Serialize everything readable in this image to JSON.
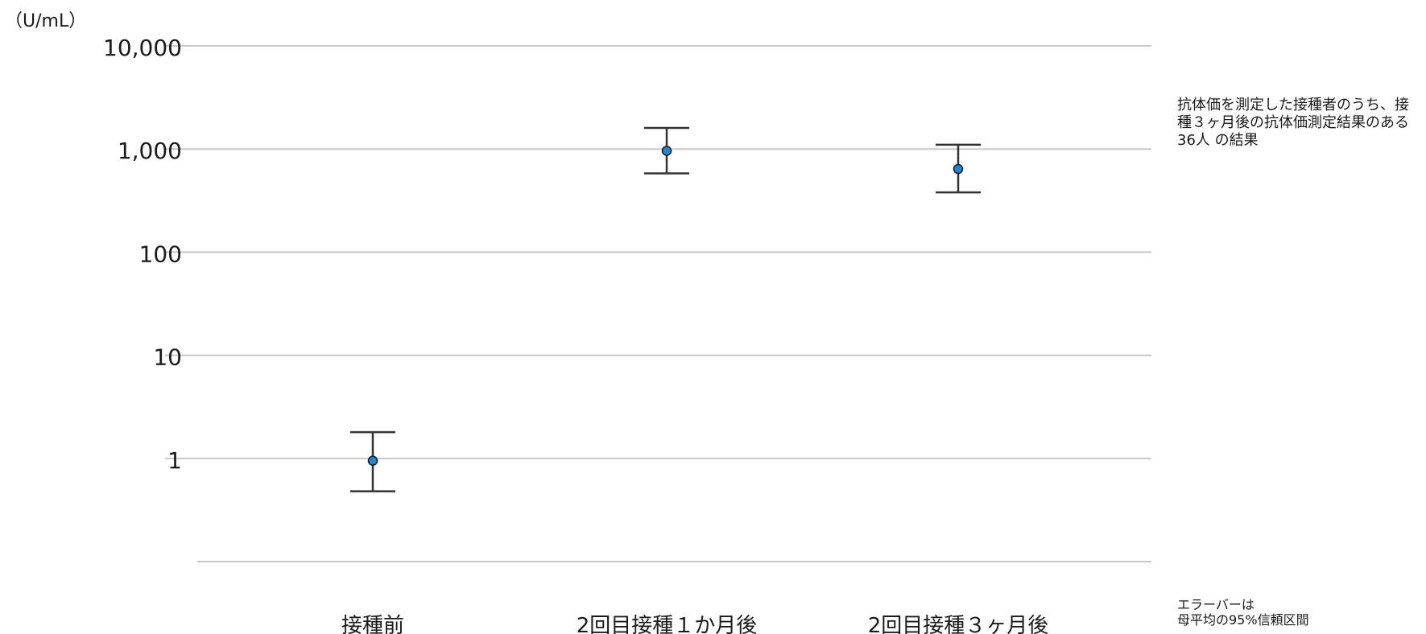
{
  "chart_data": {
    "type": "scatter",
    "y_unit_label": "（U/mL）",
    "yscale": "log",
    "ylim": [
      0.1,
      10000
    ],
    "yticks": [
      {
        "value": 10000,
        "label": "10,000"
      },
      {
        "value": 1000,
        "label": "1,000"
      },
      {
        "value": 100,
        "label": "100"
      },
      {
        "value": 10,
        "label": "10"
      },
      {
        "value": 1,
        "label": "1"
      }
    ],
    "grid": true,
    "categories": [
      "接種前",
      "2回目接種１か月後",
      "2回目接種３ヶ月後"
    ],
    "points": [
      {
        "category": "接種前",
        "value": 0.95,
        "ci_low": 0.48,
        "ci_high": 1.8
      },
      {
        "category": "2回目接種１か月後",
        "value": 960,
        "ci_low": 580,
        "ci_high": 1600
      },
      {
        "category": "2回目接種３ヶ月後",
        "value": 640,
        "ci_low": 380,
        "ci_high": 1100
      }
    ],
    "marker_color": "#1e88d6",
    "errorbar_color": "#333333",
    "annotations": {
      "population_note": "抗体価を測定した接種者のうち、接種３ヶ月後の抗体価測定結果のある36人 の結果",
      "errorbar_note_line1": "エラーバーは",
      "errorbar_note_line2": "母平均の95%信頼区間"
    }
  }
}
